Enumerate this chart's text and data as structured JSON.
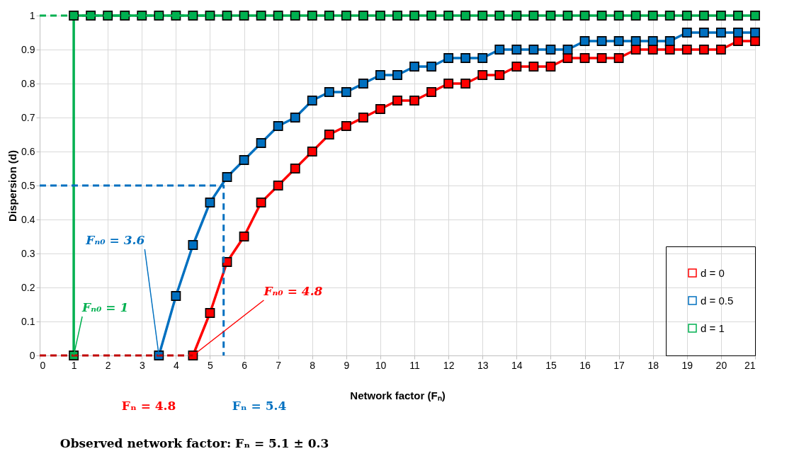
{
  "chart_data": {
    "type": "line",
    "xlabel": "Network factor (Fₙ)",
    "ylabel": "Dispersion (d)",
    "xlim": [
      0,
      21
    ],
    "xticks": [
      0,
      1,
      2,
      3,
      4,
      5,
      6,
      7,
      8,
      9,
      10,
      11,
      12,
      13,
      14,
      15,
      16,
      17,
      18,
      19,
      20,
      21
    ],
    "ylim": [
      0,
      1
    ],
    "yticks": [
      0,
      0.1,
      0.2,
      0.3,
      0.4,
      0.5,
      0.6,
      0.7,
      0.8,
      0.9,
      1
    ],
    "grid": true,
    "legend": "bottom right",
    "marker": "square",
    "line_style": "solid",
    "series": [
      {
        "name": "d = 0",
        "color": "#ff0000",
        "x": [
          4.5,
          5,
          5.5,
          6,
          6.5,
          7,
          7.5,
          8,
          8.5,
          9,
          9.5,
          10,
          10.5,
          11,
          11.5,
          12,
          12.5,
          13,
          13.5,
          14,
          14.5,
          15,
          15.5,
          16,
          16.5,
          17,
          17.5,
          18,
          18.5,
          19,
          19.5,
          20,
          20.5,
          21
        ],
        "values": [
          0,
          0.125,
          0.275,
          0.35,
          0.45,
          0.5,
          0.55,
          0.6,
          0.65,
          0.675,
          0.7,
          0.725,
          0.75,
          0.75,
          0.775,
          0.8,
          0.8,
          0.825,
          0.825,
          0.85,
          0.85,
          0.85,
          0.875,
          0.875,
          0.875,
          0.875,
          0.9,
          0.9,
          0.9,
          0.9,
          0.9,
          0.9,
          0.925,
          0.925
        ]
      },
      {
        "name": "d = 0.5",
        "color": "#0070c0",
        "x": [
          3.5,
          4,
          4.5,
          5,
          5.5,
          6,
          6.5,
          7,
          7.5,
          8,
          8.5,
          9,
          9.5,
          10,
          10.5,
          11,
          11.5,
          12,
          12.5,
          13,
          13.5,
          14,
          14.5,
          15,
          15.5,
          16,
          16.5,
          17,
          17.5,
          18,
          18.5,
          19,
          19.5,
          20,
          20.5,
          21
        ],
        "values": [
          0,
          0.175,
          0.325,
          0.45,
          0.525,
          0.575,
          0.625,
          0.675,
          0.7,
          0.75,
          0.775,
          0.775,
          0.8,
          0.825,
          0.825,
          0.85,
          0.85,
          0.875,
          0.875,
          0.875,
          0.9,
          0.9,
          0.9,
          0.9,
          0.9,
          0.925,
          0.925,
          0.925,
          0.925,
          0.925,
          0.925,
          0.95,
          0.95,
          0.95,
          0.95,
          0.95
        ]
      },
      {
        "name": "d = 1",
        "color": "#00b050",
        "x": [
          1,
          1,
          1.5,
          2,
          2.5,
          3,
          3.5,
          4,
          4.5,
          5,
          5.5,
          6,
          6.5,
          7,
          7.5,
          8,
          8.5,
          9,
          9.5,
          10,
          10.5,
          11,
          11.5,
          12,
          12.5,
          13,
          13.5,
          14,
          14.5,
          15,
          15.5,
          16,
          16.5,
          17,
          17.5,
          18,
          18.5,
          19,
          19.5,
          20,
          20.5,
          21
        ],
        "values": [
          0,
          1,
          1,
          1,
          1,
          1,
          1,
          1,
          1,
          1,
          1,
          1,
          1,
          1,
          1,
          1,
          1,
          1,
          1,
          1,
          1,
          1,
          1,
          1,
          1,
          1,
          1,
          1,
          1,
          1,
          1,
          1,
          1,
          1,
          1,
          1,
          1,
          1,
          1,
          1,
          1,
          1
        ]
      },
      {
        "color": "#c00000",
        "x": [
          0,
          4.5
        ],
        "values": [
          0,
          0
        ],
        "line_style": "dashed",
        "marker": "none"
      },
      {
        "color": "#0070c0",
        "x": [
          0,
          5.4,
          5.4
        ],
        "values": [
          0.5,
          0.5,
          0
        ],
        "line_style": "dashed",
        "marker": "none"
      },
      {
        "color": "#00b050",
        "x": [
          0,
          5
        ],
        "values": [
          1,
          1
        ],
        "line_style": "dashed",
        "marker": "none"
      }
    ],
    "annotations": [
      {
        "text": "Fₙ₀ = 1",
        "x": 1,
        "y": 0
      },
      {
        "text": "Fₙ₀ = 3.6",
        "x": 3.5,
        "y": 0
      },
      {
        "text": "Fₙ₀ = 4.8",
        "x": 4.5,
        "y": 0
      },
      "Fₙ = 4.8",
      "Fₙ = 5.4",
      "Observed network factor: Fₙ = 5.1 ± 0.3"
    ]
  }
}
